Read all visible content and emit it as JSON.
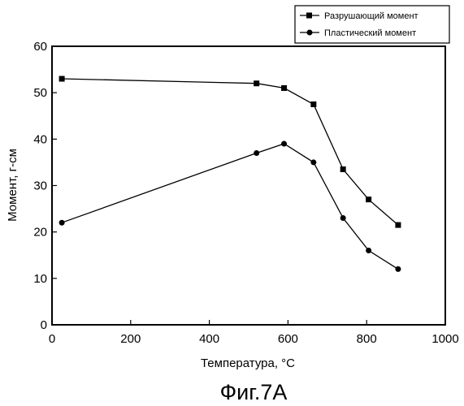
{
  "chart_data": {
    "type": "line",
    "xlabel": "Температура, °С",
    "ylabel": "Момент, г-см",
    "xlim": [
      0,
      1000
    ],
    "ylim": [
      0,
      60
    ],
    "xticks": [
      0,
      200,
      400,
      600,
      800,
      1000
    ],
    "yticks": [
      0,
      10,
      20,
      30,
      40,
      50,
      60
    ],
    "grid": false,
    "legend_position": "top-right",
    "series": [
      {
        "name": "Разрушающий момент",
        "marker": "square",
        "x": [
          25,
          520,
          590,
          665,
          740,
          805,
          880
        ],
        "y": [
          53,
          52,
          51,
          47.5,
          33.5,
          27,
          21.5
        ]
      },
      {
        "name": "Пластический момент",
        "marker": "circle",
        "x": [
          25,
          520,
          590,
          665,
          740,
          805,
          880
        ],
        "y": [
          22,
          37,
          39,
          35,
          23,
          16,
          12
        ]
      }
    ]
  },
  "caption": "Фиг.7А"
}
